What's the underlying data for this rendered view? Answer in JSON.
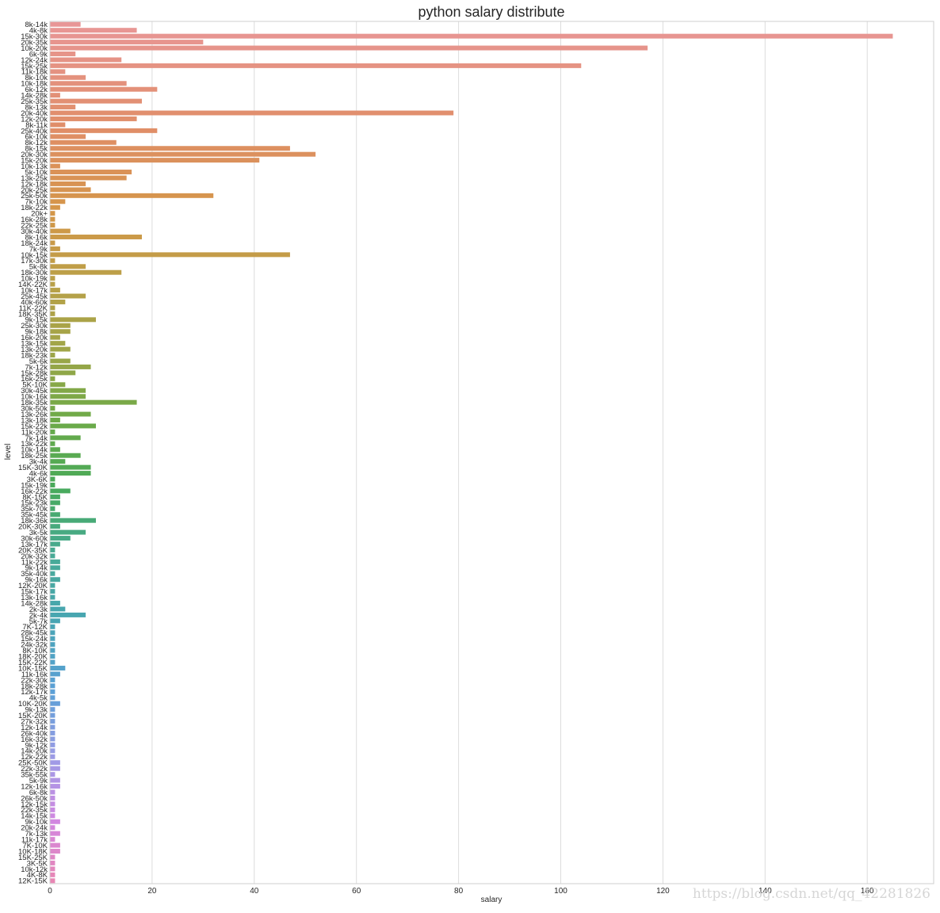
{
  "chart_data": {
    "type": "bar",
    "orientation": "horizontal",
    "title": "python salary distribute",
    "xlabel": "salary",
    "ylabel": "level",
    "xlim": [
      0,
      173
    ],
    "xticks": [
      0,
      20,
      40,
      60,
      80,
      100,
      120,
      140,
      160
    ],
    "grid": "vertical",
    "categories": [
      "8k-14k",
      "4k-8k",
      "15k-30k",
      "20k-35k",
      "10k-20k",
      "6k-9k",
      "12k-24k",
      "15k-25k",
      "11k-18k",
      "8k-10k",
      "10k-18k",
      "6k-12k",
      "14k-28k",
      "25k-35k",
      "8k-13k",
      "20k-40k",
      "12k-20k",
      "8k-11k",
      "25k-40k",
      "6k-10k",
      "8k-12k",
      "8k-15k",
      "20k-30k",
      "15k-20k",
      "10k-13k",
      "5k-10k",
      "13k-25k",
      "12k-18k",
      "20k-25k",
      "25k-50k",
      "7k-10k",
      "18k-22k",
      "20k+",
      "16k-28k",
      "22k-25k",
      "30k-40k",
      "8k-16k",
      "18k-24k",
      "7k-9k",
      "10k-15k",
      "17k-30k",
      "5k-8k",
      "18k-30k",
      "10k-19k",
      "14K-22K",
      "10k-17k",
      "25k-45k",
      "40k-60k",
      "11K-22K",
      "18K-35K",
      "9k-15k",
      "25k-30k",
      "9k-18k",
      "16k-20k",
      "13k-15k",
      "13k-20k",
      "18k-23k",
      "5k-6k",
      "7k-12k",
      "15k-28k",
      "16k-25k",
      "5K-10K",
      "30k-45k",
      "10k-16k",
      "18k-35k",
      "30k-50k",
      "13k-26k",
      "13k-18k",
      "15k-22k",
      "11k-20k",
      "7k-14k",
      "13k-22k",
      "10k-14k",
      "18k-25k",
      "3k-4k",
      "15K-30K",
      "4k-6k",
      "3K-6K",
      "15k-19k",
      "16k-22k",
      "8K-15K",
      "15k-23k",
      "35k-70k",
      "35k-45k",
      "18k-36k",
      "20K-30K",
      "3k-5k",
      "30k-60k",
      "13k-17k",
      "20K-35K",
      "20k-32k",
      "11k-22k",
      "9k-14k",
      "35k-40k",
      "9k-16k",
      "12K-20K",
      "15k-17k",
      "13k-16k",
      "14k-28k",
      "2k-3k",
      "2k-4k",
      "5k-7k",
      "7K-12K",
      "28k-45k",
      "15k-24k",
      "24k-32k",
      "8K-10K",
      "18K-20K",
      "15K-22K",
      "10K-15K",
      "11k-16k",
      "22k-30k",
      "18k-28k",
      "12k-17k",
      "4k-5k",
      "10K-20K",
      "9k-13k",
      "15K-20K",
      "27k-32k",
      "12k-14k",
      "26k-40k",
      "16k-32k",
      "9k-12k",
      "14k-20k",
      "12k-22k",
      "25K-50K",
      "22k-32k",
      "35k-55k",
      "5k-9k",
      "12k-16k",
      "6k-8k",
      "26k-50k",
      "12k-15k",
      "22k-35k",
      "14k-15k",
      "9k-10k",
      "20k-24k",
      "7k-13k",
      "11k-17k",
      "7K-10K",
      "10K-18K",
      "15K-25K",
      "3K-5K",
      "10k-12k",
      "4K-8K",
      "12K-15K"
    ],
    "values": [
      6,
      17,
      165,
      30,
      117,
      5,
      14,
      104,
      3,
      7,
      15,
      21,
      2,
      18,
      5,
      79,
      17,
      3,
      21,
      7,
      13,
      47,
      52,
      41,
      2,
      16,
      15,
      7,
      8,
      32,
      3,
      2,
      1,
      1,
      1,
      4,
      18,
      1,
      2,
      47,
      1,
      7,
      14,
      1,
      1,
      2,
      7,
      3,
      1,
      1,
      9,
      4,
      4,
      2,
      3,
      4,
      1,
      4,
      8,
      5,
      1,
      3,
      7,
      7,
      17,
      1,
      8,
      2,
      9,
      1,
      6,
      1,
      2,
      6,
      3,
      8,
      8,
      1,
      1,
      4,
      2,
      2,
      1,
      2,
      9,
      2,
      7,
      4,
      2,
      1,
      1,
      2,
      2,
      1,
      2,
      1,
      1,
      1,
      2,
      3,
      7,
      2,
      1,
      1,
      1,
      1,
      1,
      1,
      1,
      3,
      2,
      1,
      1,
      1,
      1,
      2,
      1,
      1,
      1,
      1,
      1,
      1,
      1,
      1,
      1,
      2,
      2,
      1,
      2,
      2,
      1,
      1,
      1,
      1,
      1,
      2,
      1,
      2,
      1,
      2,
      2,
      1,
      1,
      1,
      1,
      1
    ]
  },
  "watermark": "https://blog.csdn.net/qq_42281826"
}
